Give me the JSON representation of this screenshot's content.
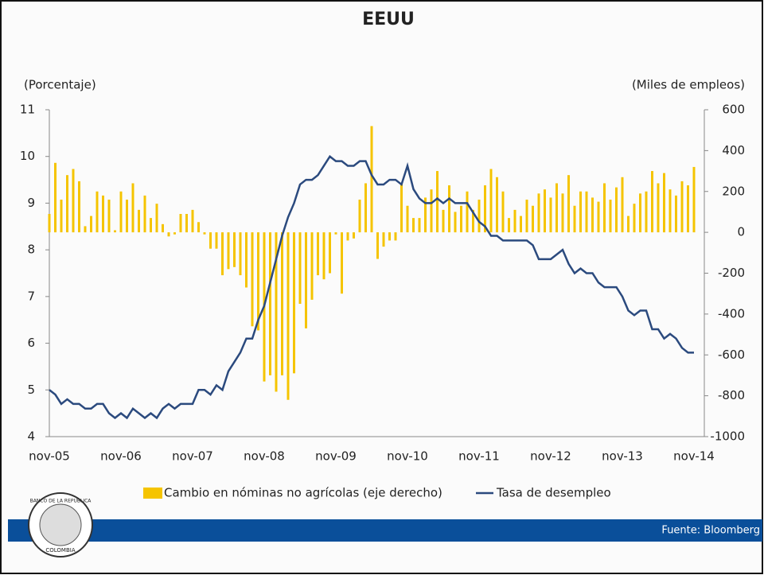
{
  "chart_data": {
    "type": "combo",
    "title": "EEUU",
    "ylabel": "(Porcentaje)",
    "y2label": "(Miles de empleos)",
    "source": "Fuente: Bloomberg",
    "logo_top": "BANCO DE LA REPUBLICA",
    "logo_bottom": "COLOMBIA",
    "categories": [
      "nov-05",
      null,
      null,
      null,
      null,
      null,
      null,
      null,
      null,
      null,
      null,
      null,
      "nov-06",
      null,
      null,
      null,
      null,
      null,
      null,
      null,
      null,
      null,
      null,
      null,
      "nov-07",
      null,
      null,
      null,
      null,
      null,
      null,
      null,
      null,
      null,
      null,
      null,
      "nov-08",
      null,
      null,
      null,
      null,
      null,
      null,
      null,
      null,
      null,
      null,
      null,
      "nov-09",
      null,
      null,
      null,
      null,
      null,
      null,
      null,
      null,
      null,
      null,
      null,
      "nov-10",
      null,
      null,
      null,
      null,
      null,
      null,
      null,
      null,
      null,
      null,
      null,
      "nov-11",
      null,
      null,
      null,
      null,
      null,
      null,
      null,
      null,
      null,
      null,
      null,
      "nov-12",
      null,
      null,
      null,
      null,
      null,
      null,
      null,
      null,
      null,
      null,
      null,
      "nov-13",
      null,
      null,
      null,
      null,
      null,
      null,
      null,
      null,
      null,
      null,
      null,
      "nov-14"
    ],
    "ylim": [
      4,
      11
    ],
    "yticks": [
      4,
      5,
      6,
      7,
      8,
      9,
      10,
      11
    ],
    "y2lim": [
      -1000,
      600
    ],
    "y2ticks": [
      -1000,
      -800,
      -600,
      -400,
      -200,
      0,
      200,
      400,
      600
    ],
    "series": [
      {
        "name": "Cambio en nóminas  no agrícolas (eje derecho)",
        "type": "bar",
        "axis": "y2",
        "color": "#f5c400",
        "values": [
          90,
          340,
          160,
          280,
          310,
          250,
          30,
          80,
          200,
          180,
          160,
          10,
          200,
          160,
          240,
          110,
          180,
          70,
          140,
          40,
          -20,
          -10,
          90,
          90,
          110,
          50,
          -10,
          -80,
          -80,
          -210,
          -180,
          -170,
          -210,
          -270,
          -460,
          -480,
          -730,
          -700,
          -780,
          -700,
          -820,
          -690,
          -350,
          -470,
          -330,
          -210,
          -230,
          -200,
          -10,
          -300,
          -40,
          -30,
          160,
          240,
          520,
          -130,
          -70,
          -40,
          -40,
          240,
          130,
          70,
          70,
          170,
          210,
          300,
          110,
          230,
          100,
          130,
          200,
          110,
          160,
          230,
          310,
          270,
          200,
          70,
          110,
          80,
          160,
          130,
          190,
          210,
          170,
          240,
          190,
          280,
          130,
          200,
          200,
          170,
          150,
          240,
          160,
          220,
          270,
          80,
          140,
          190,
          200,
          300,
          240,
          290,
          210,
          180,
          250,
          230,
          320
        ]
      },
      {
        "name": "Tasa de desempleo",
        "type": "line",
        "axis": "y",
        "color": "#2b4a7e",
        "values": [
          5.0,
          4.9,
          4.7,
          4.8,
          4.7,
          4.7,
          4.6,
          4.6,
          4.7,
          4.7,
          4.5,
          4.4,
          4.5,
          4.4,
          4.6,
          4.5,
          4.4,
          4.5,
          4.4,
          4.6,
          4.7,
          4.6,
          4.7,
          4.7,
          4.7,
          5.0,
          5.0,
          4.9,
          5.1,
          5.0,
          5.4,
          5.6,
          5.8,
          6.1,
          6.1,
          6.5,
          6.8,
          7.3,
          7.8,
          8.3,
          8.7,
          9.0,
          9.4,
          9.5,
          9.5,
          9.6,
          9.8,
          10.0,
          9.9,
          9.9,
          9.8,
          9.8,
          9.9,
          9.9,
          9.6,
          9.4,
          9.4,
          9.5,
          9.5,
          9.4,
          9.8,
          9.3,
          9.1,
          9.0,
          9.0,
          9.1,
          9.0,
          9.1,
          9.0,
          9.0,
          9.0,
          8.8,
          8.6,
          8.5,
          8.3,
          8.3,
          8.2,
          8.2,
          8.2,
          8.2,
          8.2,
          8.1,
          7.8,
          7.8,
          7.8,
          7.9,
          8.0,
          7.7,
          7.5,
          7.6,
          7.5,
          7.5,
          7.3,
          7.2,
          7.2,
          7.2,
          7.0,
          6.7,
          6.6,
          6.7,
          6.7,
          6.3,
          6.3,
          6.1,
          6.2,
          6.1,
          5.9,
          5.8,
          5.8
        ]
      }
    ]
  }
}
